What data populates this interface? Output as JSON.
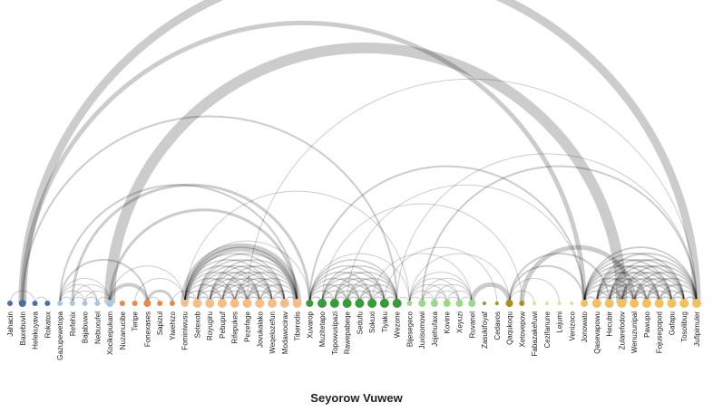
{
  "title": "Seyorow Vuwew",
  "groups": [
    {
      "id": "g1",
      "color": "#4a6fa5"
    },
    {
      "id": "g2",
      "color": "#a6c8e6"
    },
    {
      "id": "g3",
      "color": "#e8894a"
    },
    {
      "id": "g4",
      "color": "#f6bd8a"
    },
    {
      "id": "g5",
      "color": "#3a9a3a"
    },
    {
      "id": "g6",
      "color": "#98d98a"
    },
    {
      "id": "g7",
      "color": "#a89020"
    },
    {
      "id": "g8",
      "color": "#f0d898"
    },
    {
      "id": "g9",
      "color": "#f2c060"
    }
  ],
  "nodes": [
    {
      "label": "Jahacin",
      "group": "g1",
      "size": 3
    },
    {
      "label": "Baxebuvin",
      "group": "g1",
      "size": 4
    },
    {
      "label": "Helekuyava",
      "group": "g1",
      "size": 3
    },
    {
      "label": "Rokatox",
      "group": "g1",
      "size": 3
    },
    {
      "label": "Gazupewetopa",
      "group": "g2",
      "size": 3
    },
    {
      "label": "Refehix",
      "group": "g2",
      "size": 3
    },
    {
      "label": "Bajabuwo",
      "group": "g2",
      "size": 3
    },
    {
      "label": "Nebuxufel",
      "group": "g2",
      "size": 3
    },
    {
      "label": "Xocikepukam",
      "group": "g2",
      "size": 4
    },
    {
      "label": "Nuzanucibe",
      "group": "g3",
      "size": 3
    },
    {
      "label": "Teripe",
      "group": "g3",
      "size": 3
    },
    {
      "label": "Fonexases",
      "group": "g3",
      "size": 4
    },
    {
      "label": "Sapizul",
      "group": "g3",
      "size": 3
    },
    {
      "label": "Yiwehizo",
      "group": "g3",
      "size": 3
    },
    {
      "label": "Fominiwusu",
      "group": "g4",
      "size": 4
    },
    {
      "label": "Setexob",
      "group": "g4",
      "size": 5
    },
    {
      "label": "Royugiru",
      "group": "g4",
      "size": 5
    },
    {
      "label": "Pebupuf",
      "group": "g4",
      "size": 5
    },
    {
      "label": "Rifepukes",
      "group": "g4",
      "size": 5
    },
    {
      "label": "Pezefage",
      "group": "g4",
      "size": 5
    },
    {
      "label": "Jovukalako",
      "group": "g4",
      "size": 5
    },
    {
      "label": "Weqelozefun",
      "group": "g4",
      "size": 5
    },
    {
      "label": "Modawocirav",
      "group": "g4",
      "size": 5
    },
    {
      "label": "Tiberodis",
      "group": "g4",
      "size": 5
    },
    {
      "label": "Xuvarop",
      "group": "g5",
      "size": 4
    },
    {
      "label": "Muzitetapo",
      "group": "g5",
      "size": 5
    },
    {
      "label": "Topowusipazi",
      "group": "g5",
      "size": 5
    },
    {
      "label": "Rawepabeqe",
      "group": "g5",
      "size": 5
    },
    {
      "label": "Sedufu",
      "group": "g5",
      "size": 5
    },
    {
      "label": "Sokuxi",
      "group": "g5",
      "size": 5
    },
    {
      "label": "Tiyaku",
      "group": "g5",
      "size": 5
    },
    {
      "label": "Wezone",
      "group": "g5",
      "size": 5
    },
    {
      "label": "Bijesegeco",
      "group": "g6",
      "size": 3
    },
    {
      "label": "Juxisomowi",
      "group": "g6",
      "size": 4
    },
    {
      "label": "Jojehufaxa",
      "group": "g6",
      "size": 4
    },
    {
      "label": "Kovine",
      "group": "g6",
      "size": 4
    },
    {
      "label": "Xeyuzi",
      "group": "g6",
      "size": 4
    },
    {
      "label": "Ruvanel",
      "group": "g6",
      "size": 4
    },
    {
      "label": "Zasukifoyaf",
      "group": "g7",
      "size": 2
    },
    {
      "label": "Cedavos",
      "group": "g7",
      "size": 2
    },
    {
      "label": "Qaqukoqu",
      "group": "g7",
      "size": 4
    },
    {
      "label": "Xetovepow",
      "group": "g7",
      "size": 3
    },
    {
      "label": "Fabazakefuwi",
      "group": "g8",
      "size": 2
    },
    {
      "label": "Cezifanune",
      "group": "g8",
      "size": 2
    },
    {
      "label": "Lejumi",
      "group": "g8",
      "size": 2
    },
    {
      "label": "Venizoco",
      "group": "g8",
      "size": 2
    },
    {
      "label": "Jonowato",
      "group": "g9",
      "size": 4
    },
    {
      "label": "Qasevapowu",
      "group": "g9",
      "size": 5
    },
    {
      "label": "Hecubir",
      "group": "g9",
      "size": 5
    },
    {
      "label": "Zularefodov",
      "group": "g9",
      "size": 5
    },
    {
      "label": "Wenuzunipal",
      "group": "g9",
      "size": 5
    },
    {
      "label": "Pawupo",
      "group": "g9",
      "size": 5
    },
    {
      "label": "Fojusegopod",
      "group": "g9",
      "size": 5
    },
    {
      "label": "Gafapu",
      "group": "g9",
      "size": 5
    },
    {
      "label": "Tosolibug",
      "group": "g9",
      "size": 5
    },
    {
      "label": "Jufipimuler",
      "group": "g9",
      "size": 5
    }
  ],
  "cliques": [
    {
      "from": 14,
      "to": 23,
      "weight": 1.5
    },
    {
      "from": 24,
      "to": 31,
      "weight": 1.5
    },
    {
      "from": 46,
      "to": 55,
      "weight": 1.8
    },
    {
      "from": 4,
      "to": 8,
      "weight": 1
    },
    {
      "from": 32,
      "to": 37,
      "weight": 1
    }
  ],
  "links": [
    {
      "source": "Baxebuvin",
      "target": "Jufipimuler",
      "weight": 9
    },
    {
      "source": "Baxebuvin",
      "target": "Jonowato",
      "weight": 5
    },
    {
      "source": "Xocikepukam",
      "target": "Zularefodov",
      "weight": 12
    },
    {
      "source": "Xocikepukam",
      "target": "Tiberodis",
      "weight": 3
    },
    {
      "source": "Baxebuvin",
      "target": "Wezone",
      "weight": 2
    },
    {
      "source": "Refehix",
      "target": "Xuvarop",
      "weight": 3
    },
    {
      "source": "Gazupewetopa",
      "target": "Tiberodis",
      "weight": 2
    },
    {
      "source": "Jahacin",
      "target": "Helekuyava",
      "weight": 1
    },
    {
      "source": "Helekuyava",
      "target": "Rokatox",
      "weight": 1
    },
    {
      "source": "Gazupewetopa",
      "target": "Fonexases",
      "weight": 2
    },
    {
      "source": "Xocikepukam",
      "target": "Fonexases",
      "weight": 4
    },
    {
      "source": "Fonexases",
      "target": "Yiwehizo",
      "weight": 3
    },
    {
      "source": "Fonexases",
      "target": "Sapizul",
      "weight": 1
    },
    {
      "source": "Teripe",
      "target": "Fominiwusu",
      "weight": 1
    },
    {
      "source": "Xocikepukam",
      "target": "Fominiwusu",
      "weight": 1
    },
    {
      "source": "Fominiwusu",
      "target": "Tiberodis",
      "weight": 9
    },
    {
      "source": "Fominiwusu",
      "target": "Xuvarop",
      "weight": 1
    },
    {
      "source": "Fominiwusu",
      "target": "Bijesegeco",
      "weight": 1
    },
    {
      "source": "Yiwehizo",
      "target": "Setexob",
      "weight": 1
    },
    {
      "source": "Rawepabeqe",
      "target": "Jonowato",
      "weight": 1
    },
    {
      "source": "Xuvarop",
      "target": "Jonowato",
      "weight": 2
    },
    {
      "source": "Muzitetapo",
      "target": "Xetovepow",
      "weight": 1
    },
    {
      "source": "Xuvarop",
      "target": "Bijesegeco",
      "weight": 1
    },
    {
      "source": "Sokuxi",
      "target": "Ruvanel",
      "weight": 1
    },
    {
      "source": "Wezone",
      "target": "Bijesegeco",
      "weight": 1
    },
    {
      "source": "Tiyaku",
      "target": "Cedavos",
      "weight": 1
    },
    {
      "source": "Bijesegeco",
      "target": "Qaqukoqu",
      "weight": 1
    },
    {
      "source": "Ruvanel",
      "target": "Qaqukoqu",
      "weight": 5
    },
    {
      "source": "Qaqukoqu",
      "target": "Jonowato",
      "weight": 2
    },
    {
      "source": "Qaqukoqu",
      "target": "Fabazakefuwi",
      "weight": 1
    },
    {
      "source": "Qaqukoqu",
      "target": "Lejumi",
      "weight": 1
    },
    {
      "source": "Xetovepow",
      "target": "Wenuzunipal",
      "weight": 5
    },
    {
      "source": "Juxisomowi",
      "target": "Jufipimuler",
      "weight": 2
    },
    {
      "source": "Qaqukoqu",
      "target": "Hecubir",
      "weight": 2
    },
    {
      "source": "Pezefage",
      "target": "Jufipimuler",
      "weight": 1
    },
    {
      "source": "Wezone",
      "target": "Jufipimuler",
      "weight": 1
    }
  ]
}
